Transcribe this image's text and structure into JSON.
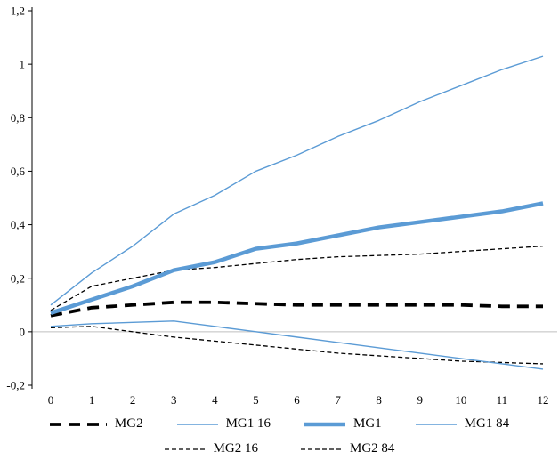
{
  "chart_data": {
    "type": "line",
    "title": "",
    "xlabel": "",
    "ylabel": "",
    "xlim": [
      0,
      12
    ],
    "ylim": [
      -0.2,
      1.2
    ],
    "grid": false,
    "zero_line_color": "#bfbfbf",
    "axis_color": "#000000",
    "accent_blue": "#5b9bd5",
    "x": [
      0,
      1,
      2,
      3,
      4,
      5,
      6,
      7,
      8,
      9,
      10,
      11,
      12
    ],
    "x_ticks": [
      "0",
      "1",
      "2",
      "3",
      "4",
      "5",
      "6",
      "7",
      "8",
      "9",
      "10",
      "11",
      "12"
    ],
    "y_ticks": [
      "1,2",
      "1",
      "0,8",
      "0,6",
      "0,4",
      "0,2",
      "0",
      "-0,2"
    ],
    "y_tick_values": [
      1.2,
      1.0,
      0.8,
      0.6,
      0.4,
      0.2,
      0,
      -0.2
    ],
    "series": [
      {
        "name": "MG2",
        "color": "#000000",
        "line_style": "dashed-thick",
        "values": [
          0.06,
          0.09,
          0.1,
          0.11,
          0.11,
          0.105,
          0.1,
          0.1,
          0.1,
          0.1,
          0.1,
          0.095,
          0.095
        ]
      },
      {
        "name": "MG1 16",
        "color": "#5b9bd5",
        "line_style": "solid-thin",
        "values": [
          0.02,
          0.03,
          0.035,
          0.04,
          0.02,
          0.0,
          -0.02,
          -0.04,
          -0.06,
          -0.08,
          -0.1,
          -0.12,
          -0.14
        ]
      },
      {
        "name": "MG1",
        "color": "#5b9bd5",
        "line_style": "solid-thick",
        "values": [
          0.07,
          0.12,
          0.17,
          0.23,
          0.26,
          0.31,
          0.33,
          0.36,
          0.39,
          0.41,
          0.43,
          0.45,
          0.48
        ]
      },
      {
        "name": "MG1 84",
        "color": "#5b9bd5",
        "line_style": "solid-thin",
        "values": [
          0.1,
          0.22,
          0.32,
          0.44,
          0.51,
          0.6,
          0.66,
          0.73,
          0.79,
          0.86,
          0.92,
          0.98,
          1.03
        ]
      },
      {
        "name": "MG2 16",
        "color": "#000000",
        "line_style": "dashed-thin",
        "values": [
          0.015,
          0.02,
          0.0,
          -0.02,
          -0.035,
          -0.05,
          -0.065,
          -0.08,
          -0.09,
          -0.1,
          -0.11,
          -0.115,
          -0.12
        ]
      },
      {
        "name": "MG2 84",
        "color": "#000000",
        "line_style": "dashed-thin",
        "values": [
          0.08,
          0.17,
          0.2,
          0.23,
          0.24,
          0.255,
          0.27,
          0.28,
          0.285,
          0.29,
          0.3,
          0.31,
          0.32
        ]
      }
    ],
    "legend_rows": [
      [
        "MG2",
        "MG1 16",
        "MG1",
        "MG1 84"
      ],
      [
        "MG2 16",
        "MG2 84"
      ]
    ]
  }
}
